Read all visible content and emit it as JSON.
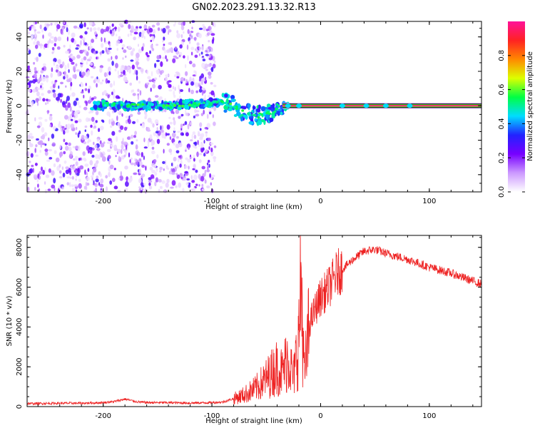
{
  "figure": {
    "title": "GN02.2023.291.13.32.R13"
  },
  "colors": {
    "snr_line": "#ee2222",
    "frame": "#000000",
    "colormap_stops": [
      "#ffffff",
      "#cc99ff",
      "#7700ff",
      "#2222ff",
      "#00ddff",
      "#00ff44",
      "#ddff00",
      "#ff8800",
      "#ff2222",
      "#ff1199"
    ]
  },
  "chart_data": [
    {
      "type": "heatmap",
      "title": "",
      "xlabel": "Height of straight line (km)",
      "ylabel": "Frequency (Hz)",
      "xlim": [
        -270,
        148
      ],
      "ylim": [
        -50,
        49
      ],
      "xticks": [
        -200,
        -100,
        0,
        100
      ],
      "yticks": [
        -40,
        -20,
        0,
        20,
        40
      ],
      "colorbar": {
        "label": "Normalized spectral amplitude",
        "range": [
          0,
          1
        ],
        "ticks": [
          0.0,
          0.2,
          0.4,
          0.6,
          0.8
        ]
      },
      "description_values": {
        "noise_region_x": [
          -270,
          -97
        ],
        "trace": [
          {
            "x": -200,
            "y": 1
          },
          {
            "x": -180,
            "y": 0
          },
          {
            "x": -160,
            "y": 0
          },
          {
            "x": -140,
            "y": 0
          },
          {
            "x": -120,
            "y": 1
          },
          {
            "x": -100,
            "y": 2
          },
          {
            "x": -90,
            "y": 2
          },
          {
            "x": -80,
            "y": 0
          },
          {
            "x": -70,
            "y": -4
          },
          {
            "x": -60,
            "y": -6
          },
          {
            "x": -50,
            "y": -5
          },
          {
            "x": -40,
            "y": -2
          },
          {
            "x": -30,
            "y": 0
          },
          {
            "x": -20,
            "y": 1
          },
          {
            "x": 0,
            "y": 0
          },
          {
            "x": 148,
            "y": 0
          }
        ],
        "steady_band_x": [
          -35,
          148
        ],
        "steady_band_y": 0
      }
    },
    {
      "type": "line",
      "title": "",
      "xlabel": "Height of straight line (km)",
      "ylabel": "SNR (10 * v/v)",
      "xlim": [
        -270,
        148
      ],
      "ylim": [
        0,
        8600
      ],
      "xticks": [
        -200,
        -100,
        0,
        100
      ],
      "yticks": [
        0,
        2000,
        4000,
        6000,
        8000
      ],
      "series": [
        {
          "x": [
            -270,
            -240,
            -220,
            -200,
            -190,
            -180,
            -170,
            -160,
            -140,
            -120,
            -100,
            -90,
            -80,
            -70,
            -60,
            -50,
            -40,
            -35,
            -30,
            -25,
            -20,
            -18,
            -15,
            -10,
            -5,
            0,
            5,
            10,
            15,
            20,
            30,
            40,
            50,
            60,
            80,
            100,
            120,
            148
          ],
          "y": [
            150,
            170,
            170,
            200,
            250,
            380,
            250,
            200,
            200,
            180,
            200,
            230,
            400,
            600,
            900,
            1400,
            2000,
            1700,
            2600,
            1400,
            3500,
            6500,
            1500,
            4200,
            4900,
            5500,
            5800,
            6200,
            6700,
            6900,
            7400,
            7800,
            7900,
            7700,
            7400,
            7000,
            6700,
            6150
          ]
        }
      ]
    }
  ]
}
